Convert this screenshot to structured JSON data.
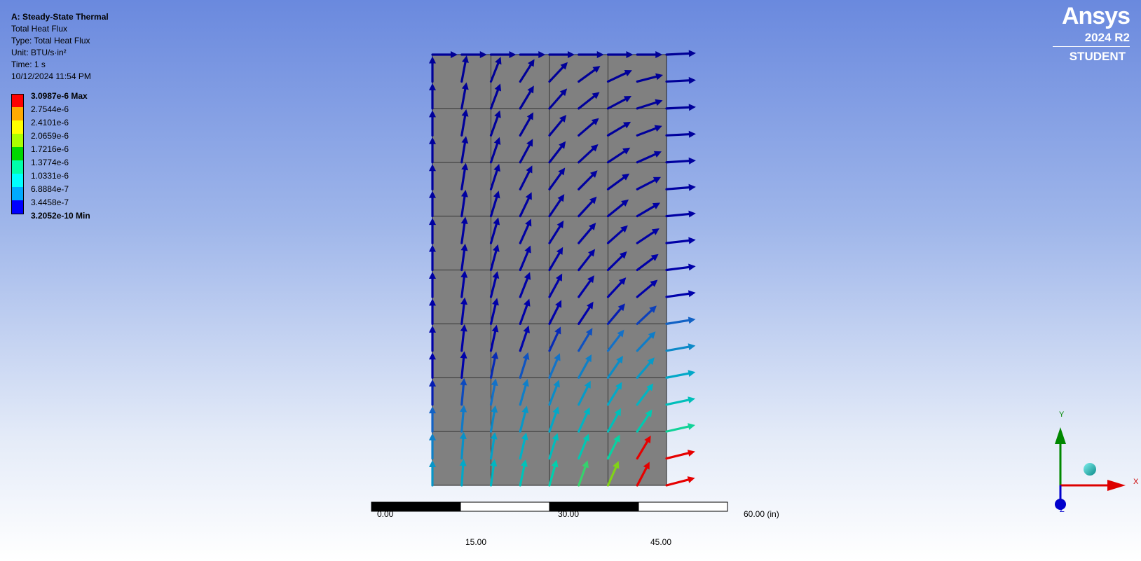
{
  "info": {
    "title": "A: Steady-State Thermal",
    "result": "Total Heat Flux",
    "type": "Type: Total Heat Flux",
    "unit": "Unit: BTU/s·in²",
    "time": "Time: 1 s",
    "timestamp": "10/12/2024 11:54 PM"
  },
  "legend": {
    "entries": [
      {
        "label": "3.0987e-6 Max",
        "color": "#ff0000",
        "bold": true
      },
      {
        "label": "2.7544e-6",
        "color": "#ffaa00",
        "bold": false
      },
      {
        "label": "2.4101e-6",
        "color": "#ffff00",
        "bold": false
      },
      {
        "label": "2.0659e-6",
        "color": "#aaff00",
        "bold": false
      },
      {
        "label": "1.7216e-6",
        "color": "#00d800",
        "bold": false
      },
      {
        "label": "1.3774e-6",
        "color": "#00ffaa",
        "bold": false
      },
      {
        "label": "1.0331e-6",
        "color": "#00ffff",
        "bold": false
      },
      {
        "label": "6.8884e-7",
        "color": "#00aaff",
        "bold": false
      },
      {
        "label": "3.4458e-7",
        "color": "#0000ff",
        "bold": false
      },
      {
        "label": "3.2052e-10 Min",
        "color": "#0000ff",
        "bold": true
      }
    ]
  },
  "logo": {
    "brand": "Ansys",
    "version": "2024 R2",
    "edition": "STUDENT"
  },
  "scale_bar": {
    "top_labels": [
      "0.00",
      "30.00",
      "60.00 (in)"
    ],
    "bottom_labels": [
      "15.00",
      "45.00"
    ]
  },
  "triad": {
    "x": "X",
    "y": "Y",
    "z": "Z",
    "colors": {
      "x": "#dd0000",
      "y": "#008800",
      "z": "#0000cc"
    }
  },
  "model": {
    "fill": "#808080",
    "grid_cols": 4,
    "grid_rows": 8
  }
}
